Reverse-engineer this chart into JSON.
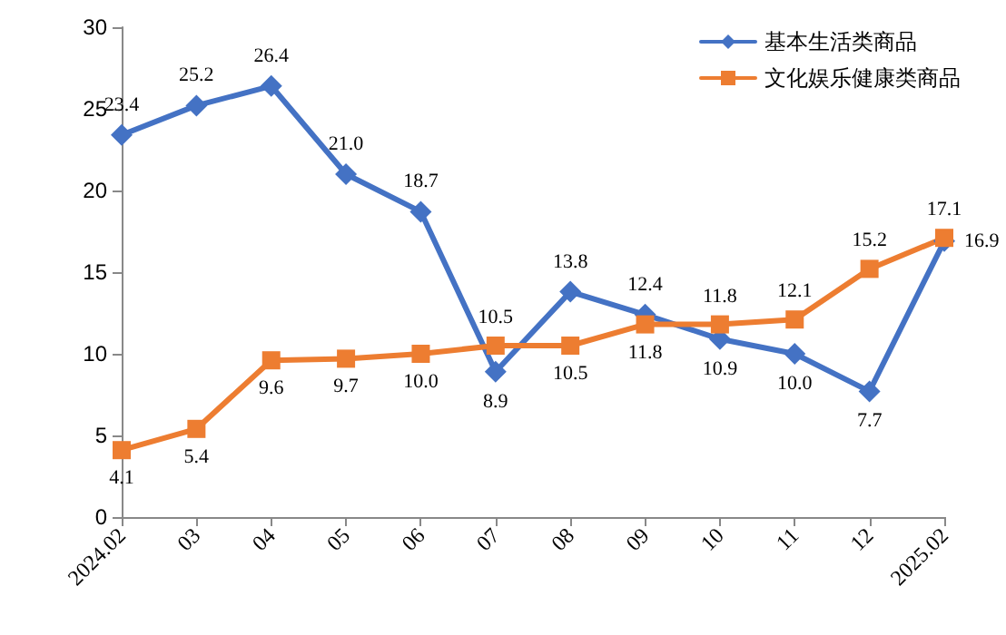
{
  "chart_data": {
    "type": "line",
    "categories": [
      "2024.02",
      "03",
      "04",
      "05",
      "06",
      "07",
      "08",
      "09",
      "10",
      "11",
      "12",
      "2025.02"
    ],
    "series": [
      {
        "name": "基本生活类商品",
        "color": "#4472c4",
        "marker": "diamond",
        "values": [
          23.4,
          25.2,
          26.4,
          21.0,
          18.7,
          8.9,
          13.8,
          12.4,
          10.9,
          10.0,
          7.7,
          16.9
        ],
        "value_labels": [
          "23.4",
          "25.2",
          "26.4",
          "21.0",
          "18.7",
          "8.9",
          "13.8",
          "12.4",
          "10.9",
          "10.0",
          "7.7",
          "16.9"
        ]
      },
      {
        "name": "文化娱乐健康类商品",
        "color": "#ed7d31",
        "marker": "square",
        "values": [
          4.1,
          5.4,
          9.6,
          9.7,
          10.0,
          10.5,
          10.5,
          11.8,
          11.8,
          12.1,
          15.2,
          17.1
        ],
        "value_labels": [
          "4.1",
          "5.4",
          "9.6",
          "9.7",
          "10.0",
          "10.5",
          "10.5",
          "11.8",
          "11.8",
          "12.1",
          "15.2",
          "17.1"
        ]
      }
    ],
    "ylim": [
      0,
      30
    ],
    "yticks": [
      0,
      5,
      10,
      15,
      20,
      25,
      30
    ],
    "grid": false,
    "legend": "top right",
    "line_style": "solid"
  }
}
